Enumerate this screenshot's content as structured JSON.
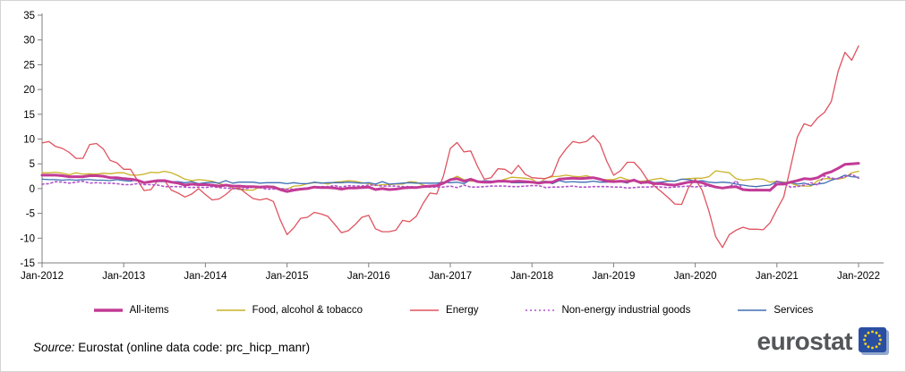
{
  "chart_data": {
    "type": "line",
    "title": "",
    "xlabel": "",
    "ylabel": "",
    "ylim": [
      -15,
      35
    ],
    "y_ticks": [
      35,
      30,
      25,
      20,
      15,
      10,
      5,
      0,
      -5,
      -10,
      -15
    ],
    "x_tick_labels": [
      "Jan-2012",
      "Jan-2013",
      "Jan-2014",
      "Jan-2015",
      "Jan-2016",
      "Jan-2017",
      "Jan-2018",
      "Jan-2019",
      "Jan-2020",
      "Jan-2021",
      "Jan-2022"
    ],
    "months_per_tick": 12,
    "x_unit": "month",
    "legend_position": "bottom",
    "grid": false,
    "series": [
      {
        "name": "All-items",
        "color": "#c23b96",
        "width": 3,
        "dash": "",
        "values": [
          2.7,
          2.7,
          2.7,
          2.6,
          2.4,
          2.4,
          2.4,
          2.6,
          2.6,
          2.5,
          2.2,
          2.2,
          2.0,
          1.9,
          1.7,
          1.2,
          1.4,
          1.6,
          1.6,
          1.3,
          1.1,
          0.7,
          0.9,
          0.8,
          0.8,
          0.7,
          0.5,
          0.7,
          0.5,
          0.5,
          0.4,
          0.4,
          0.3,
          0.4,
          0.3,
          -0.2,
          -0.6,
          -0.3,
          -0.1,
          0.0,
          0.3,
          0.2,
          0.2,
          0.1,
          -0.1,
          0.1,
          0.1,
          0.2,
          0.3,
          -0.2,
          0.0,
          -0.2,
          -0.1,
          0.1,
          0.2,
          0.2,
          0.4,
          0.5,
          0.6,
          1.1,
          1.8,
          2.0,
          1.5,
          1.9,
          1.4,
          1.3,
          1.3,
          1.5,
          1.5,
          1.4,
          1.5,
          1.4,
          1.3,
          1.1,
          1.3,
          1.3,
          1.9,
          2.0,
          2.1,
          2.0,
          2.1,
          2.2,
          1.9,
          1.5,
          1.4,
          1.5,
          1.4,
          1.7,
          1.2,
          1.3,
          1.0,
          1.0,
          0.8,
          0.7,
          1.0,
          1.3,
          1.4,
          1.2,
          0.7,
          0.3,
          0.1,
          0.3,
          0.4,
          -0.2,
          -0.3,
          -0.3,
          -0.3,
          -0.3,
          0.9,
          0.9,
          1.3,
          1.6,
          2.0,
          1.9,
          2.2,
          3.0,
          3.4,
          4.1,
          4.9,
          5.0,
          5.1
        ]
      },
      {
        "name": "Food, alcohol & tobacco",
        "color": "#c9b227",
        "width": 1.3,
        "dash": "",
        "values": [
          3.2,
          3.2,
          3.3,
          3.1,
          2.8,
          3.2,
          2.9,
          3.0,
          2.9,
          3.1,
          3.0,
          3.2,
          3.2,
          2.7,
          2.7,
          2.9,
          3.3,
          3.2,
          3.5,
          3.2,
          2.6,
          1.9,
          1.6,
          1.8,
          1.7,
          1.5,
          1.0,
          0.7,
          0.1,
          -0.2,
          -0.3,
          -0.3,
          0.3,
          0.5,
          0.5,
          0.0,
          -0.1,
          0.5,
          0.6,
          1.0,
          1.2,
          1.2,
          0.9,
          1.3,
          1.4,
          1.6,
          1.5,
          1.2,
          1.0,
          0.6,
          0.8,
          0.8,
          0.9,
          0.9,
          1.4,
          1.3,
          0.7,
          0.4,
          0.7,
          1.2,
          1.8,
          2.5,
          1.8,
          1.5,
          1.5,
          1.4,
          1.4,
          1.4,
          1.9,
          2.3,
          2.2,
          2.1,
          1.9,
          1.0,
          2.1,
          2.4,
          2.5,
          2.7,
          2.5,
          2.4,
          2.6,
          2.2,
          1.9,
          1.8,
          1.8,
          2.3,
          1.8,
          1.5,
          1.5,
          1.6,
          1.9,
          2.1,
          1.6,
          1.5,
          1.9,
          2.0,
          2.1,
          2.1,
          2.4,
          3.6,
          3.4,
          3.2,
          2.0,
          1.7,
          1.8,
          2.0,
          1.9,
          1.3,
          1.5,
          1.3,
          1.1,
          0.6,
          0.5,
          0.5,
          1.6,
          2.0,
          2.0,
          1.9,
          2.2,
          3.2,
          3.5
        ]
      },
      {
        "name": "Energy",
        "color": "#df535f",
        "width": 1.3,
        "dash": "",
        "values": [
          9.2,
          9.5,
          8.5,
          8.1,
          7.3,
          6.1,
          6.1,
          8.9,
          9.1,
          8.0,
          5.7,
          5.2,
          3.9,
          3.9,
          1.7,
          -0.4,
          -0.2,
          1.6,
          1.6,
          -0.3,
          -0.9,
          -1.7,
          -1.1,
          0.0,
          -1.2,
          -2.3,
          -2.1,
          -1.2,
          0.0,
          0.1,
          -1.0,
          -2.0,
          -2.3,
          -2.0,
          -2.6,
          -6.3,
          -9.3,
          -7.9,
          -6.0,
          -5.8,
          -4.8,
          -5.1,
          -5.6,
          -7.2,
          -8.9,
          -8.5,
          -7.3,
          -5.8,
          -5.4,
          -8.1,
          -8.7,
          -8.7,
          -8.4,
          -6.4,
          -6.7,
          -5.6,
          -3.0,
          -0.9,
          -1.1,
          2.6,
          8.1,
          9.3,
          7.4,
          7.6,
          4.5,
          1.9,
          2.2,
          4.0,
          3.9,
          3.0,
          4.7,
          2.9,
          2.2,
          2.1,
          2.0,
          2.6,
          6.1,
          8.0,
          9.5,
          9.2,
          9.5,
          10.7,
          9.1,
          5.5,
          2.7,
          3.6,
          5.3,
          5.3,
          3.8,
          1.7,
          0.5,
          -0.6,
          -1.8,
          -3.1,
          -3.2,
          0.2,
          1.9,
          -0.3,
          -4.5,
          -9.7,
          -11.9,
          -9.3,
          -8.4,
          -7.8,
          -8.2,
          -8.2,
          -8.3,
          -6.9,
          -4.2,
          -1.7,
          4.3,
          10.4,
          13.1,
          12.6,
          14.3,
          15.4,
          17.6,
          23.7,
          27.5,
          25.9,
          28.8
        ]
      },
      {
        "name": "Non-energy industrial goods",
        "color": "#b052c8",
        "width": 1.6,
        "dash": "2 3",
        "values": [
          0.9,
          1.0,
          1.4,
          1.3,
          1.1,
          1.3,
          1.5,
          1.1,
          1.2,
          1.1,
          1.1,
          1.0,
          0.8,
          0.8,
          1.0,
          0.8,
          0.8,
          0.7,
          0.4,
          0.4,
          0.4,
          0.3,
          0.2,
          0.3,
          0.2,
          0.4,
          0.2,
          0.1,
          0.0,
          -0.1,
          0.0,
          0.3,
          0.2,
          -0.1,
          -0.1,
          0.0,
          -0.1,
          -0.1,
          0.0,
          0.1,
          0.2,
          0.4,
          0.4,
          0.6,
          0.3,
          0.6,
          0.5,
          0.5,
          0.7,
          0.7,
          0.5,
          0.5,
          0.5,
          0.4,
          0.4,
          0.3,
          0.3,
          0.3,
          0.3,
          0.3,
          0.5,
          0.2,
          0.7,
          0.3,
          0.3,
          0.4,
          0.5,
          0.5,
          0.5,
          0.4,
          0.4,
          0.5,
          0.6,
          0.6,
          0.2,
          0.3,
          0.3,
          0.4,
          0.5,
          0.3,
          0.3,
          0.4,
          0.4,
          0.4,
          0.3,
          0.3,
          0.1,
          0.2,
          0.3,
          0.3,
          0.4,
          0.3,
          0.2,
          0.3,
          0.4,
          0.5,
          0.3,
          0.5,
          0.5,
          0.3,
          0.2,
          0.2,
          1.6,
          -0.1,
          -0.3,
          -0.1,
          -0.3,
          -0.5,
          1.5,
          1.0,
          0.3,
          0.4,
          0.7,
          1.2,
          0.7,
          2.6,
          2.1,
          2.0,
          2.4,
          2.9,
          2.1
        ]
      },
      {
        "name": "Services",
        "color": "#3e6eb4",
        "width": 1.3,
        "dash": "",
        "values": [
          1.9,
          1.8,
          1.8,
          1.7,
          1.8,
          1.7,
          1.8,
          1.8,
          1.7,
          1.7,
          1.6,
          1.8,
          1.6,
          1.5,
          1.8,
          1.1,
          1.5,
          1.4,
          1.4,
          1.4,
          1.4,
          1.2,
          1.4,
          1.0,
          1.2,
          1.3,
          1.1,
          1.6,
          1.1,
          1.3,
          1.3,
          1.3,
          1.1,
          1.2,
          1.2,
          1.2,
          1.0,
          1.2,
          1.0,
          1.0,
          1.3,
          1.1,
          1.2,
          1.2,
          1.2,
          1.3,
          1.2,
          1.1,
          1.2,
          0.9,
          1.4,
          0.9,
          1.0,
          1.1,
          1.2,
          1.1,
          1.1,
          1.1,
          1.1,
          1.3,
          1.2,
          1.3,
          1.0,
          1.8,
          1.3,
          1.6,
          1.5,
          1.6,
          1.5,
          1.2,
          1.2,
          1.2,
          1.2,
          1.3,
          1.5,
          1.0,
          1.6,
          1.3,
          1.4,
          1.3,
          1.3,
          1.5,
          1.3,
          1.3,
          1.6,
          1.4,
          1.1,
          1.9,
          1.0,
          1.6,
          1.2,
          1.3,
          1.5,
          1.5,
          1.9,
          1.8,
          1.5,
          1.6,
          1.3,
          1.2,
          1.3,
          1.2,
          0.9,
          0.7,
          0.5,
          0.4,
          0.6,
          0.7,
          1.4,
          1.2,
          1.3,
          0.9,
          1.1,
          0.7,
          0.9,
          1.1,
          1.7,
          2.1,
          2.7,
          2.4,
          2.3
        ]
      }
    ]
  },
  "source": {
    "prefix": "Source:",
    "text": " Eurostat (online data code: prc_hicp_manr)"
  },
  "logo": {
    "text": "eurostat"
  },
  "colors": {
    "axis": "#7f7f7f",
    "text": "#000000",
    "logo_blue": "#2a4fa2",
    "logo_star": "#ffd617"
  }
}
